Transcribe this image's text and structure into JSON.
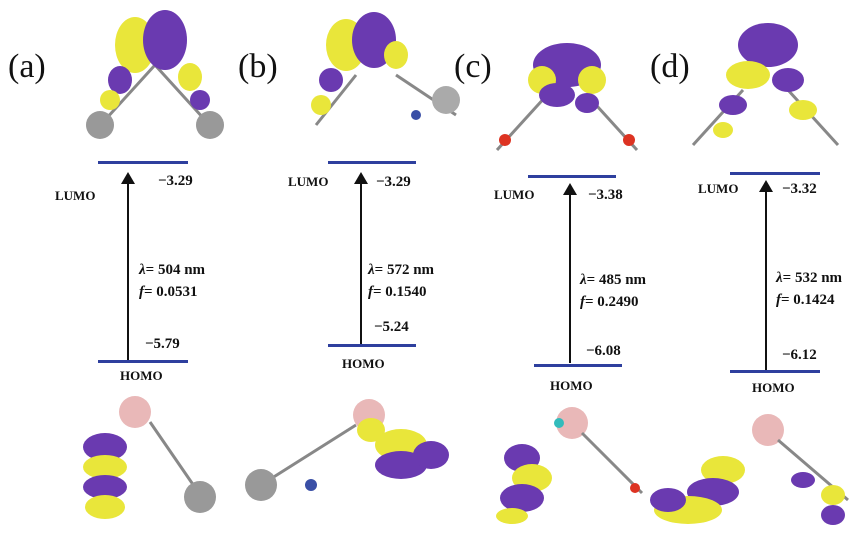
{
  "figure_colors": {
    "level_line": "#2e3f9e",
    "orbital_positive": "#e9e63a",
    "orbital_negative": "#6a3ab0",
    "carbon": "#9a9a9a",
    "hydrogen": "#e8e8e8",
    "boron": "#e9b8b8"
  },
  "panels": [
    {
      "label": "(a)",
      "lumo_label": "LUMO",
      "lumo_energy": "−3.29",
      "homo_label": "HOMO",
      "homo_energy": "−5.79",
      "lambda_label": "λ",
      "lambda_value": "= 504 nm",
      "f_label": "f",
      "f_value": "= 0.0531"
    },
    {
      "label": "(b)",
      "lumo_label": "LUMO",
      "lumo_energy": "−3.29",
      "homo_label": "HOMO",
      "homo_energy": "−5.24",
      "lambda_label": "λ",
      "lambda_value": "= 572 nm",
      "f_label": "f",
      "f_value": "= 0.1540"
    },
    {
      "label": "(c)",
      "lumo_label": "LUMO",
      "lumo_energy": "−3.38",
      "homo_label": "HOMO",
      "homo_energy": "−6.08",
      "lambda_label": "λ",
      "lambda_value": "= 485 nm",
      "f_label": "f",
      "f_value": "= 0.2490"
    },
    {
      "label": "(d)",
      "lumo_label": "LUMO",
      "lumo_energy": "−3.32",
      "homo_label": "HOMO",
      "homo_energy": "−6.12",
      "lambda_label": "λ",
      "lambda_value": "= 532 nm",
      "f_label": "f",
      "f_value": "= 0.1424"
    }
  ]
}
